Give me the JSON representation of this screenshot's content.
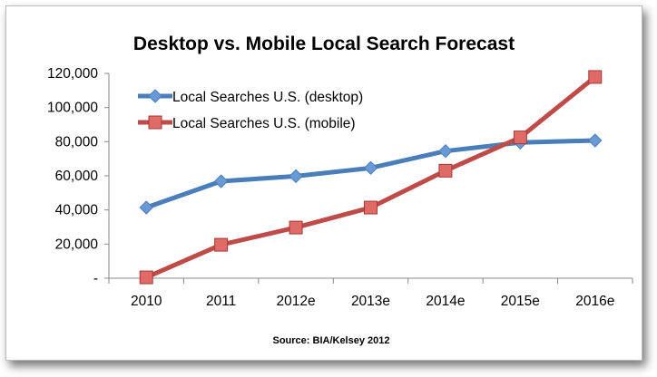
{
  "chart_data": {
    "type": "line",
    "title": "Desktop vs. Mobile Local Search Forecast",
    "source": "Source: BIA/Kelsey 2012",
    "xlabel": "",
    "ylabel": "",
    "categories": [
      "2010",
      "2011",
      "2012e",
      "2013e",
      "2014e",
      "2015e",
      "2016e"
    ],
    "ylim": [
      0,
      120000
    ],
    "yticks": [
      0,
      20000,
      40000,
      60000,
      80000,
      100000,
      120000
    ],
    "ytick_labels": [
      "-",
      "20,000",
      "40,000",
      "60,000",
      "80,000",
      "100,000",
      "120,000"
    ],
    "grid": false,
    "legend_position": "top-left",
    "series": [
      {
        "name": "Local Searches U.S. (desktop)",
        "color": "#4a7ebb",
        "marker": "diamond",
        "values": [
          41400,
          56800,
          59800,
          64600,
          74500,
          79500,
          80700
        ]
      },
      {
        "name": "Local Searches U.S. (mobile)",
        "color": "#be4b48",
        "marker": "square",
        "values": [
          500,
          19600,
          29700,
          41400,
          63000,
          82500,
          117900
        ]
      }
    ]
  }
}
